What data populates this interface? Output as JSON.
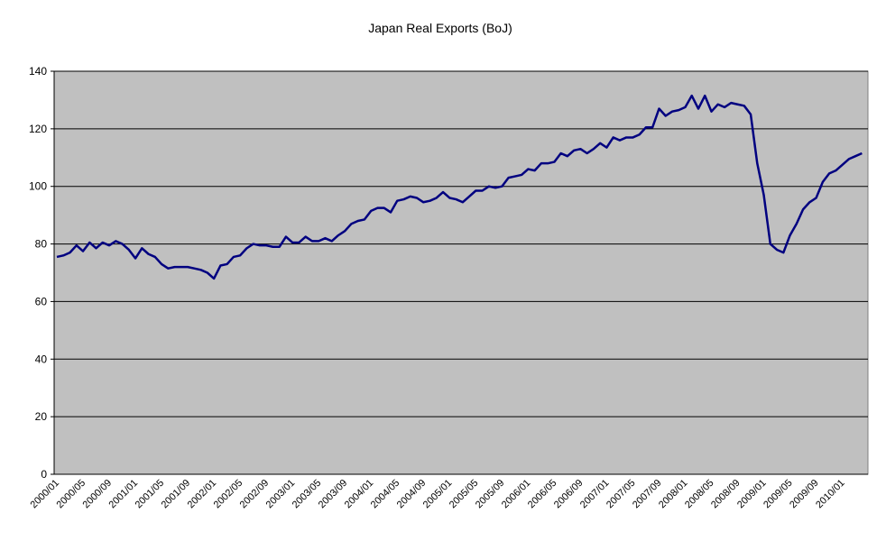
{
  "chart_data": {
    "type": "line",
    "title": "Japan Real Exports (BoJ)",
    "categories": [
      "2000/01",
      null,
      null,
      null,
      "2000/05",
      null,
      null,
      null,
      "2000/09",
      null,
      null,
      null,
      "2001/01",
      null,
      null,
      null,
      "2001/05",
      null,
      null,
      null,
      "2001/09",
      null,
      null,
      null,
      "2002/01",
      null,
      null,
      null,
      "2002/05",
      null,
      null,
      null,
      "2002/09",
      null,
      null,
      null,
      "2003/01",
      null,
      null,
      null,
      "2003/05",
      null,
      null,
      null,
      "2003/09",
      null,
      null,
      null,
      "2004/01",
      null,
      null,
      null,
      "2004/05",
      null,
      null,
      null,
      "2004/09",
      null,
      null,
      null,
      "2005/01",
      null,
      null,
      null,
      "2005/05",
      null,
      null,
      null,
      "2005/09",
      null,
      null,
      null,
      "2006/01",
      null,
      null,
      null,
      "2006/05",
      null,
      null,
      null,
      "2006/09",
      null,
      null,
      null,
      "2007/01",
      null,
      null,
      null,
      "2007/05",
      null,
      null,
      null,
      "2007/09",
      null,
      null,
      null,
      "2008/01",
      null,
      null,
      null,
      "2008/05",
      null,
      null,
      null,
      "2008/09",
      null,
      null,
      null,
      "2009/01",
      null,
      null,
      null,
      "2009/05",
      null,
      null,
      null,
      "2009/09",
      null,
      null,
      null,
      "2010/01",
      null,
      null,
      null
    ],
    "values": [
      75.5,
      76,
      77,
      79.5,
      77.5,
      80.5,
      78.5,
      80.5,
      79.5,
      81,
      80,
      78,
      75,
      78.5,
      76.5,
      75.5,
      73,
      71.5,
      72,
      72,
      72,
      71.5,
      71,
      70,
      68,
      72.5,
      73,
      75.5,
      76,
      78.5,
      80,
      79.5,
      79.5,
      79,
      79,
      82.5,
      80.5,
      80.5,
      82.5,
      81,
      81,
      82,
      81,
      83,
      84.5,
      87,
      88,
      88.5,
      91.5,
      92.5,
      92.5,
      91,
      95,
      95.5,
      96.5,
      96,
      94.5,
      95,
      96,
      98,
      96,
      95.5,
      94.5,
      96.5,
      98.5,
      98.5,
      100,
      99.5,
      100,
      103,
      103.5,
      104,
      106,
      105.5,
      108,
      108,
      108.5,
      111.5,
      110.5,
      112.5,
      113,
      111.5,
      113,
      115,
      113.5,
      117,
      116,
      117,
      117,
      118,
      120.5,
      120.5,
      127,
      124.5,
      126,
      126.5,
      127.5,
      131.5,
      127,
      131.5,
      126,
      128.5,
      127.5,
      129,
      128.5,
      128,
      125,
      108,
      97,
      80,
      78,
      77,
      83,
      87,
      92,
      94.5,
      96,
      101.5,
      104.5,
      105.5,
      107.5,
      109.5,
      110.5,
      111.5
    ],
    "color": "#000080",
    "ylim": [
      0,
      140
    ],
    "yticks": [
      0,
      20,
      40,
      60,
      80,
      100,
      120,
      140
    ],
    "grid": true
  }
}
